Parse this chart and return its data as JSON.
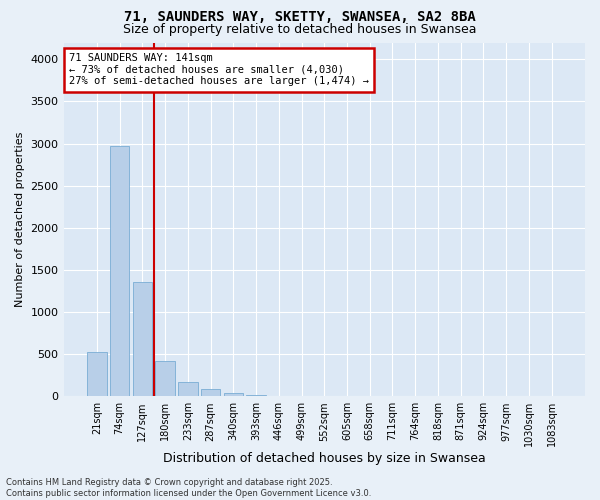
{
  "title1": "71, SAUNDERS WAY, SKETTY, SWANSEA, SA2 8BA",
  "title2": "Size of property relative to detached houses in Swansea",
  "xlabel": "Distribution of detached houses by size in Swansea",
  "ylabel": "Number of detached properties",
  "categories": [
    "21sqm",
    "74sqm",
    "127sqm",
    "180sqm",
    "233sqm",
    "287sqm",
    "340sqm",
    "393sqm",
    "446sqm",
    "499sqm",
    "552sqm",
    "605sqm",
    "658sqm",
    "711sqm",
    "764sqm",
    "818sqm",
    "871sqm",
    "924sqm",
    "977sqm",
    "1030sqm",
    "1083sqm"
  ],
  "values": [
    530,
    2970,
    1360,
    420,
    175,
    90,
    45,
    18,
    5,
    2,
    0,
    0,
    0,
    0,
    0,
    0,
    0,
    0,
    0,
    0,
    0
  ],
  "bar_color": "#b8cfe8",
  "bar_edge_color": "#7aadd4",
  "bg_color": "#dce8f5",
  "grid_color": "#ffffff",
  "fig_bg_color": "#e8f0f8",
  "vline_color": "#cc0000",
  "vline_x_index": 2,
  "annotation_line1": "71 SAUNDERS WAY: 141sqm",
  "annotation_line2": "← 73% of detached houses are smaller (4,030)",
  "annotation_line3": "27% of semi-detached houses are larger (1,474) →",
  "annotation_box_color": "#cc0000",
  "footer_text": "Contains HM Land Registry data © Crown copyright and database right 2025.\nContains public sector information licensed under the Open Government Licence v3.0.",
  "ylim": [
    0,
    4200
  ],
  "yticks": [
    0,
    500,
    1000,
    1500,
    2000,
    2500,
    3000,
    3500,
    4000
  ],
  "title1_fontsize": 10,
  "title2_fontsize": 9,
  "xlabel_fontsize": 9,
  "ylabel_fontsize": 8,
  "xtick_fontsize": 7,
  "ytick_fontsize": 8,
  "annotation_fontsize": 7.5,
  "footer_fontsize": 6
}
